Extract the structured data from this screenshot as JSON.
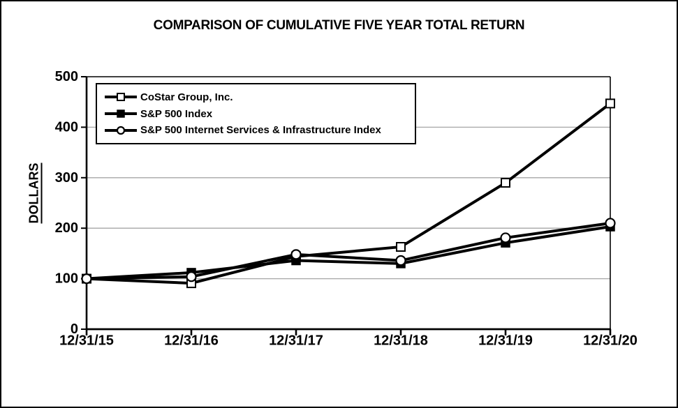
{
  "chart_data": {
    "type": "line",
    "title": "COMPARISON OF CUMULATIVE FIVE YEAR TOTAL RETURN",
    "xlabel": "",
    "ylabel": "DOLLARS",
    "categories": [
      "12/31/15",
      "12/31/16",
      "12/31/17",
      "12/31/18",
      "12/31/19",
      "12/31/20"
    ],
    "series": [
      {
        "name": "CoStar Group, Inc.",
        "marker": "open-square",
        "values": [
          100,
          91,
          144,
          163,
          290,
          447
        ]
      },
      {
        "name": "S&P 500 Index",
        "marker": "filled-square",
        "values": [
          100,
          112,
          136,
          130,
          171,
          203
        ]
      },
      {
        "name": "S&P 500 Internet Services & Infrastructure Index",
        "marker": "open-circle",
        "values": [
          100,
          104,
          148,
          136,
          181,
          210
        ]
      }
    ],
    "ylim": [
      0,
      500
    ],
    "yticks": [
      0,
      100,
      200,
      300,
      400,
      500
    ],
    "grid": "horizontal",
    "gridline_color": "#a6a6a6",
    "line_color": "#000000",
    "legend_position": "top-left-inside"
  }
}
